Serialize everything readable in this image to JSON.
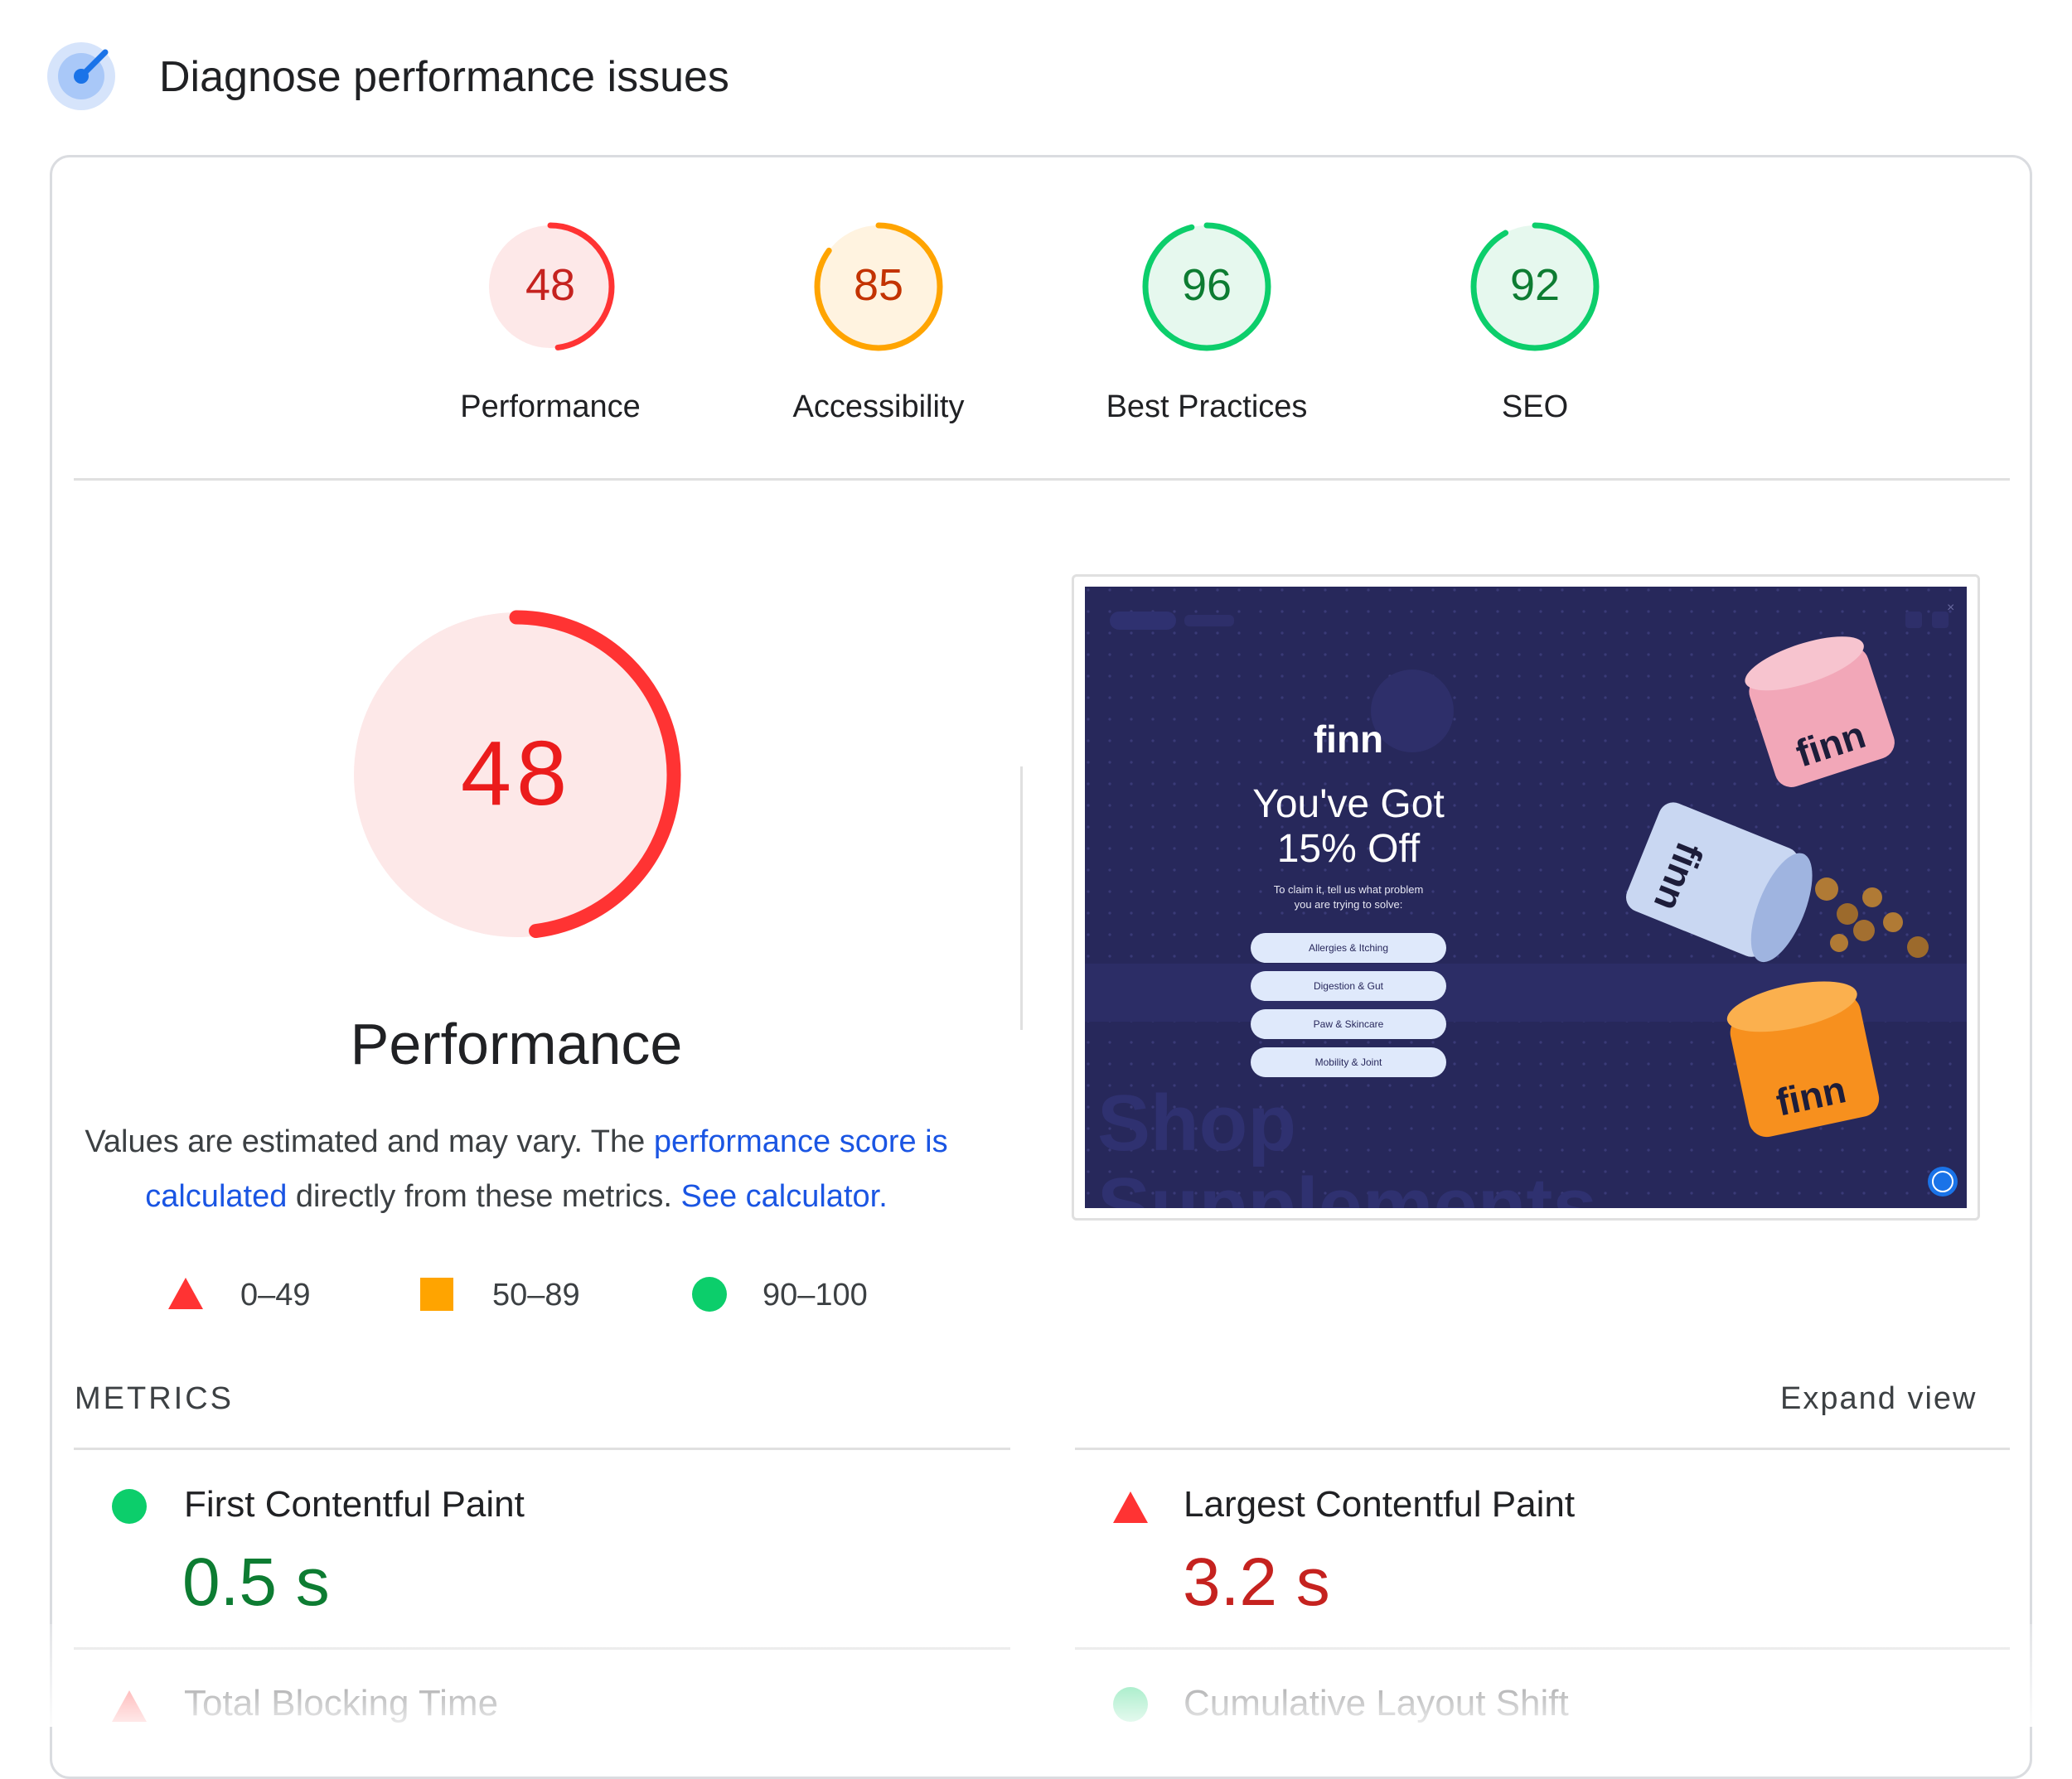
{
  "header": {
    "title": "Diagnose performance issues",
    "icon": "lighthouse-gauge-icon"
  },
  "colors": {
    "fail": "#ff3333",
    "fail_text": "#c5221f",
    "average": "#ffa400",
    "average_text": "#c33300",
    "pass": "#0cce6b",
    "pass_text": "#0d7c32",
    "link": "#1a55e3"
  },
  "scores": [
    {
      "value": "48",
      "label": "Performance",
      "status": "fail"
    },
    {
      "value": "85",
      "label": "Accessibility",
      "status": "average"
    },
    {
      "value": "96",
      "label": "Best Practices",
      "status": "pass"
    },
    {
      "value": "92",
      "label": "SEO",
      "status": "pass"
    }
  ],
  "main_gauge": {
    "value": "48",
    "label": "Performance",
    "status": "fail"
  },
  "description": {
    "part1": "Values are estimated and may vary. The ",
    "link1": "performance score is calculated",
    "part2": " directly from these metrics. ",
    "link2": "See calculator."
  },
  "legend": [
    {
      "range": "0–49",
      "shape": "triangle-icon"
    },
    {
      "range": "50–89",
      "shape": "square-icon"
    },
    {
      "range": "90–100",
      "shape": "circle-icon"
    }
  ],
  "screenshot": {
    "brand": "finn",
    "headline_line1": "You've Got",
    "headline_line2": "15% Off",
    "sub_line1": "To claim it, tell us what problem",
    "sub_line2": "you are trying to solve:",
    "options": [
      "Allergies & Itching",
      "Digestion & Gut",
      "Paw & Skincare",
      "Mobility & Joint"
    ],
    "bg_text_line1": "Shop",
    "bg_text_line2": "Supplements",
    "product_labels": [
      "finn",
      "finn",
      "finn"
    ]
  },
  "metrics": {
    "title": "METRICS",
    "expand_label": "Expand view",
    "items": [
      {
        "name": "First Contentful Paint",
        "value": "0.5 s",
        "status": "pass"
      },
      {
        "name": "Largest Contentful Paint",
        "value": "3.2 s",
        "status": "fail"
      },
      {
        "name": "Total Blocking Time",
        "value": "",
        "status": "average"
      },
      {
        "name": "Cumulative Layout Shift",
        "value": "",
        "status": "pass"
      }
    ]
  }
}
